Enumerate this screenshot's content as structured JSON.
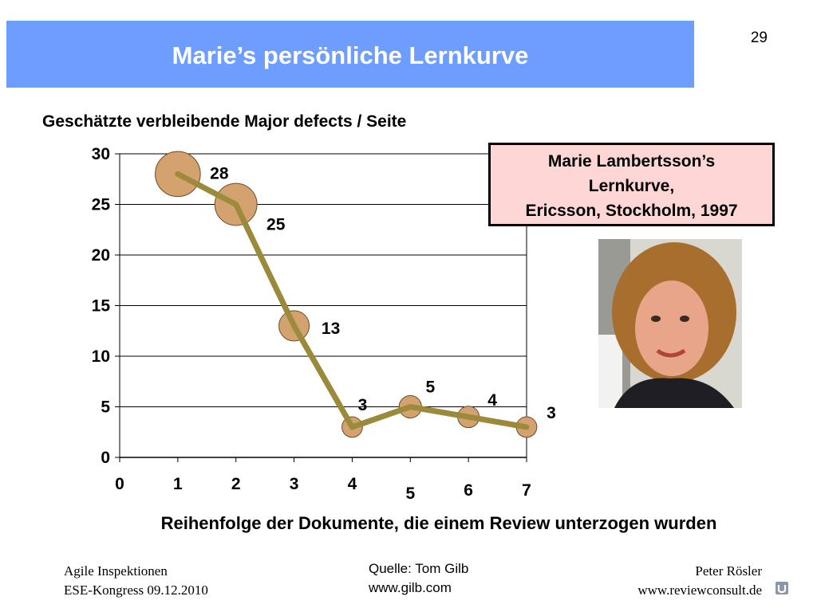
{
  "slide": {
    "title": "Marie’s persönliche Lernkurve",
    "page_number": "29"
  },
  "info_box": {
    "line1": "Marie Lambertsson’s",
    "line2": "Lernkurve,",
    "line3": "Ericsson, Stockholm, 1997"
  },
  "footer": {
    "left_line1": "Agile Inspektionen",
    "left_line2": "ESE-Kongress 09.12.2010",
    "source_line1": "Quelle: Tom Gilb",
    "source_line2": "www.gilb.com",
    "right_line1": "Peter Rösler",
    "right_line2": "www.reviewconsult.de"
  },
  "colors": {
    "title_bar": "#6d9eff",
    "line": "#9a8a3a",
    "marker_fill": "#d4a26e",
    "marker_stroke": "#6b4a2a",
    "grid": "#000000",
    "info_box_bg": "#ffd6d6"
  },
  "chart_data": {
    "type": "line",
    "title": "Geschätzte verbleibende Major defects / Seite",
    "xlabel": "Reihenfolge der Dokumente, die einem Review unterzogen wurden",
    "ylabel": "",
    "x": [
      1,
      2,
      3,
      4,
      5,
      6,
      7
    ],
    "values": [
      28,
      25,
      13,
      3,
      5,
      4,
      3
    ],
    "data_labels": [
      "28",
      "25",
      "13",
      "3",
      "5",
      "4",
      "3"
    ],
    "xlim": [
      0,
      7
    ],
    "ylim": [
      0,
      30
    ],
    "x_ticks": [
      "0",
      "1",
      "2",
      "3",
      "4",
      "5",
      "6",
      "7"
    ],
    "y_ticks": [
      "0",
      "5",
      "10",
      "15",
      "20",
      "25",
      "30"
    ],
    "grid": "horizontal",
    "marker_size_scales_with_value": true
  }
}
